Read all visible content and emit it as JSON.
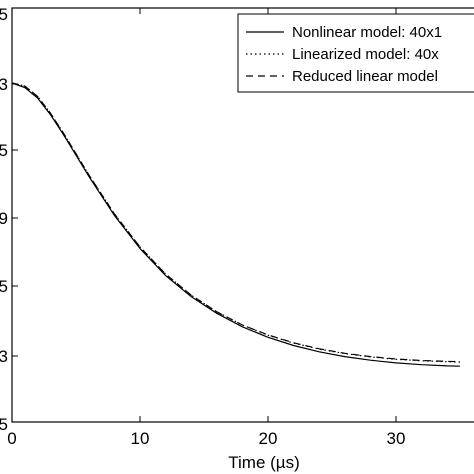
{
  "chart_data": {
    "type": "line",
    "title": "",
    "xlabel": "Time (µs)",
    "ylabel": "",
    "xlim": [
      0,
      35
    ],
    "x_ticks": [
      0,
      10,
      20,
      30
    ],
    "x_tick_labels": [
      "0",
      "10",
      "20",
      "30"
    ],
    "y_tick_labels": [
      "5",
      "3",
      "5",
      "9",
      "5",
      "3",
      "5"
    ],
    "grid": false,
    "legend_position": "top-right",
    "series": [
      {
        "name": "Nonlinear model: 40x1",
        "style": "solid",
        "color": "#000000",
        "x": [
          0,
          1,
          2,
          3,
          4,
          5,
          6,
          8,
          10,
          12,
          14,
          16,
          18,
          20,
          22,
          24,
          26,
          28,
          30,
          32,
          34,
          35
        ],
        "y": [
          1.0,
          0.985,
          0.95,
          0.895,
          0.83,
          0.76,
          0.69,
          0.56,
          0.45,
          0.36,
          0.29,
          0.235,
          0.19,
          0.155,
          0.128,
          0.107,
          0.091,
          0.079,
          0.07,
          0.064,
          0.06,
          0.059
        ]
      },
      {
        "name": "Linearized model: 40x",
        "style": "dotted",
        "color": "#000000",
        "x": [
          0,
          1,
          2,
          3,
          4,
          5,
          6,
          8,
          10,
          12,
          14,
          16,
          18,
          20,
          22,
          24,
          26,
          28,
          30,
          32,
          34,
          35
        ],
        "y": [
          1.0,
          0.99,
          0.955,
          0.9,
          0.835,
          0.765,
          0.695,
          0.565,
          0.455,
          0.365,
          0.295,
          0.24,
          0.196,
          0.162,
          0.136,
          0.116,
          0.101,
          0.09,
          0.082,
          0.077,
          0.074,
          0.073
        ]
      },
      {
        "name": "Reduced linear model",
        "style": "dashed",
        "color": "#000000",
        "x": [
          0,
          1,
          2,
          3,
          4,
          5,
          6,
          8,
          10,
          12,
          14,
          16,
          18,
          20,
          22,
          24,
          26,
          28,
          30,
          32,
          34,
          35
        ],
        "y": [
          1.0,
          0.99,
          0.955,
          0.9,
          0.835,
          0.765,
          0.695,
          0.565,
          0.455,
          0.365,
          0.295,
          0.24,
          0.196,
          0.163,
          0.137,
          0.117,
          0.102,
          0.091,
          0.083,
          0.078,
          0.075,
          0.074
        ]
      }
    ]
  }
}
